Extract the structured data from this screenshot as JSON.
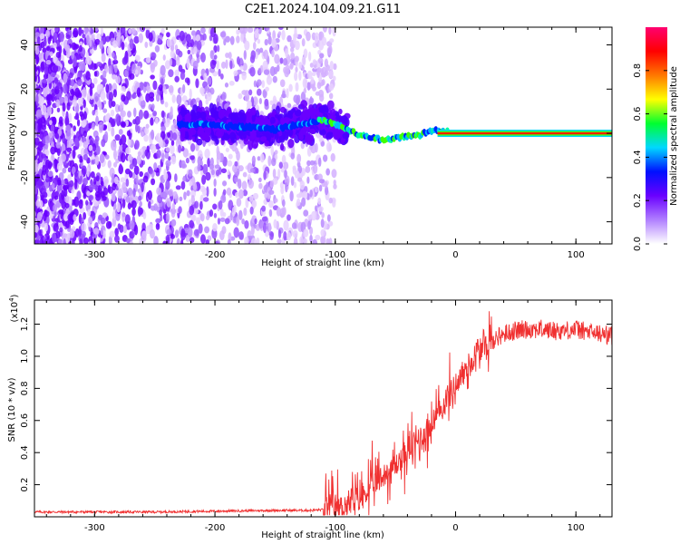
{
  "title": "C2E1.2024.104.09.21.G11",
  "chart_data": [
    {
      "type": "heatmap",
      "xlabel": "Height of straight line (km)",
      "ylabel": "Frequency (Hz)",
      "xlim": [
        -350,
        130
      ],
      "ylim": [
        -50,
        48
      ],
      "xticks": [
        -300,
        -200,
        -100,
        0,
        100
      ],
      "yticks": [
        -40,
        -20,
        0,
        20,
        40
      ],
      "colorbar": {
        "label": "Normalized spectral amplitude",
        "range": [
          0,
          1
        ],
        "ticks": [
          "0.0",
          "0.2",
          "0.4",
          "0.6",
          "0.8"
        ],
        "colors": [
          "#ffffff",
          "#b07fff",
          "#6a00ff",
          "#0010ff",
          "#00d8ff",
          "#00ff30",
          "#ffff00",
          "#ff7800",
          "#ff0000",
          "#ff0070"
        ]
      },
      "ridge": [
        {
          "x": -210,
          "y": 4
        },
        {
          "x": -180,
          "y": 3
        },
        {
          "x": -150,
          "y": 2
        },
        {
          "x": -120,
          "y": 5
        },
        {
          "x": -110,
          "y": 6
        },
        {
          "x": -100,
          "y": 4
        },
        {
          "x": -90,
          "y": 2
        },
        {
          "x": -80,
          "y": -1
        },
        {
          "x": -70,
          "y": -2
        },
        {
          "x": -60,
          "y": -3
        },
        {
          "x": -50,
          "y": -2
        },
        {
          "x": -40,
          "y": -1
        },
        {
          "x": -30,
          "y": -1
        },
        {
          "x": -20,
          "y": 1
        },
        {
          "x": -10,
          "y": 1
        },
        {
          "x": 0,
          "y": 0
        },
        {
          "x": 130,
          "y": 0
        }
      ],
      "grid": false
    },
    {
      "type": "line",
      "xlabel": "Height of straight line (km)",
      "ylabel": "SNR (10 * v/v)",
      "scale_label": "(x10",
      "scale_exponent": "4",
      "xlim": [
        -350,
        130
      ],
      "ylim": [
        0,
        1.35
      ],
      "xticks": [
        -300,
        -200,
        -100,
        0,
        100
      ],
      "yticks": [
        "0.2",
        "0.4",
        "0.6",
        "0.8",
        "1.0",
        "1.2"
      ],
      "color": "#f03030",
      "series": [
        {
          "x": [
            -350,
            -300,
            -250,
            -200,
            -150,
            -120,
            -100,
            -90,
            -80,
            -70,
            -60,
            -50,
            -40,
            -30,
            -20,
            -10,
            0,
            10,
            20,
            30,
            40,
            50,
            60,
            70,
            80,
            90,
            100,
            110,
            120,
            130
          ],
          "y": [
            0.03,
            0.03,
            0.03,
            0.035,
            0.04,
            0.04,
            0.05,
            0.07,
            0.12,
            0.18,
            0.25,
            0.32,
            0.4,
            0.48,
            0.56,
            0.7,
            0.82,
            0.93,
            1.03,
            1.1,
            1.14,
            1.16,
            1.17,
            1.17,
            1.16,
            1.16,
            1.17,
            1.15,
            1.14,
            1.13
          ]
        }
      ],
      "grid": false
    }
  ]
}
